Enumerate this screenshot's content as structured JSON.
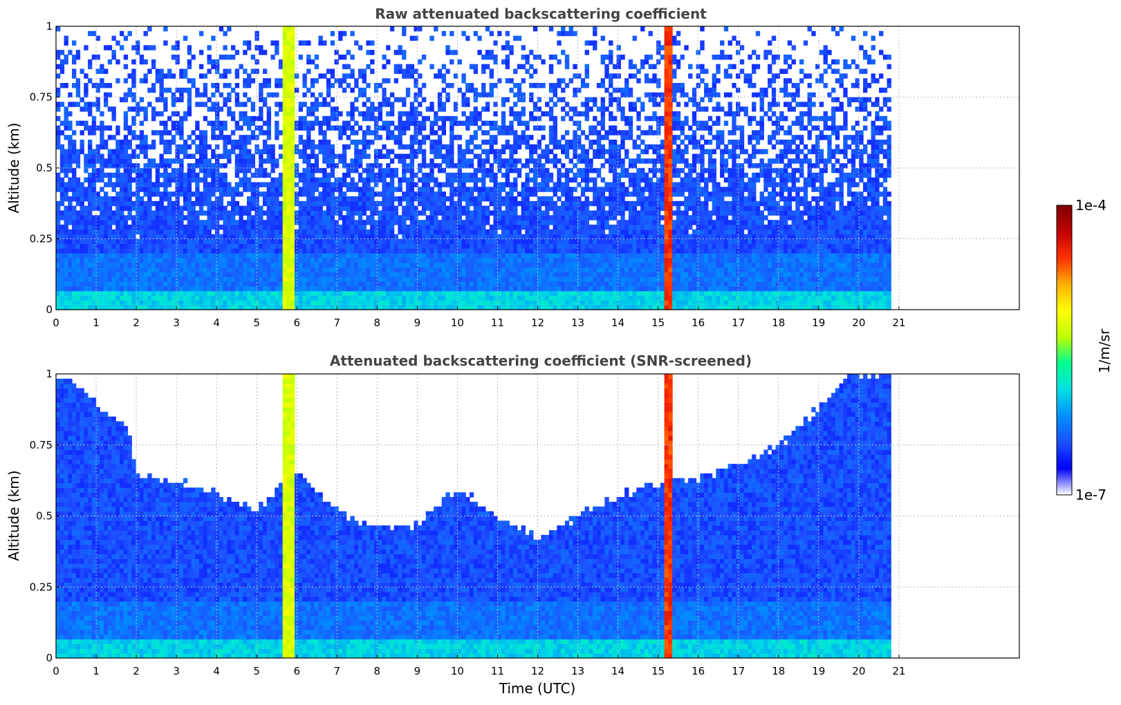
{
  "chart_data": [
    {
      "type": "heatmap",
      "title": "Raw attenuated backscattering coefficient",
      "xlabel": "",
      "ylabel": "Altitude (km)",
      "xlim": [
        0,
        24
      ],
      "ylim": [
        0,
        1
      ],
      "xticks": [
        0,
        1,
        2,
        3,
        4,
        5,
        6,
        7,
        8,
        9,
        10,
        11,
        12,
        13,
        14,
        15,
        16,
        17,
        18,
        19,
        20,
        21
      ],
      "yticks": [
        0,
        0.25,
        0.5,
        0.75,
        1
      ],
      "ytick_labels": [
        "0",
        "0.25",
        "0.5",
        "0.75",
        "1"
      ],
      "grid": true,
      "data_time_range": [
        0,
        20.8
      ],
      "background_level": 0.18,
      "clouds": [
        {
          "t_start": 5.65,
          "t_end": 5.95,
          "level": 0.58
        },
        {
          "t_start": 15.15,
          "t_end": 15.35,
          "level": 0.82
        }
      ],
      "noise": "speckled white gaps increasing with altitude"
    },
    {
      "type": "heatmap",
      "title": "Attenuated backscattering coefficient (SNR-screened)",
      "xlabel": "Time (UTC)",
      "ylabel": "Altitude (km)",
      "xlim": [
        0,
        24
      ],
      "ylim": [
        0,
        1
      ],
      "xticks": [
        0,
        1,
        2,
        3,
        4,
        5,
        6,
        7,
        8,
        9,
        10,
        11,
        12,
        13,
        14,
        15,
        16,
        17,
        18,
        19,
        20,
        21
      ],
      "yticks": [
        0,
        0.25,
        0.5,
        0.75,
        1
      ],
      "ytick_labels": [
        "0",
        "0.25",
        "0.5",
        "0.75",
        "1"
      ],
      "grid": true,
      "data_time_range": [
        0,
        20.8
      ],
      "background_level": 0.18,
      "clouds": [
        {
          "t_start": 5.65,
          "t_end": 5.95,
          "level": 0.58
        },
        {
          "t_start": 15.15,
          "t_end": 15.35,
          "level": 0.82
        }
      ],
      "screened_top_altitude_km": {
        "t": [
          0,
          1,
          1.8,
          2,
          3,
          4,
          5,
          5.6,
          6,
          7,
          8,
          9,
          10,
          11,
          12,
          13,
          14,
          15,
          16,
          17,
          18,
          19,
          19.7,
          20.8
        ],
        "alt": [
          1.0,
          0.9,
          0.8,
          0.65,
          0.62,
          0.58,
          0.52,
          0.6,
          0.65,
          0.52,
          0.45,
          0.47,
          0.6,
          0.5,
          0.42,
          0.5,
          0.57,
          0.62,
          0.63,
          0.68,
          0.75,
          0.88,
          1.0,
          1.0
        ]
      }
    }
  ],
  "colorbar": {
    "label": "1/m/sr",
    "max_label": "1e-4",
    "min_label": "1e-7",
    "scale": "log"
  },
  "colormap": [
    "#ffffff",
    "#0000ff",
    "#1e50ff",
    "#0090ff",
    "#00e0e0",
    "#00ff90",
    "#c0ff00",
    "#ffff00",
    "#ffb000",
    "#ff3000",
    "#c00000",
    "#800000"
  ]
}
